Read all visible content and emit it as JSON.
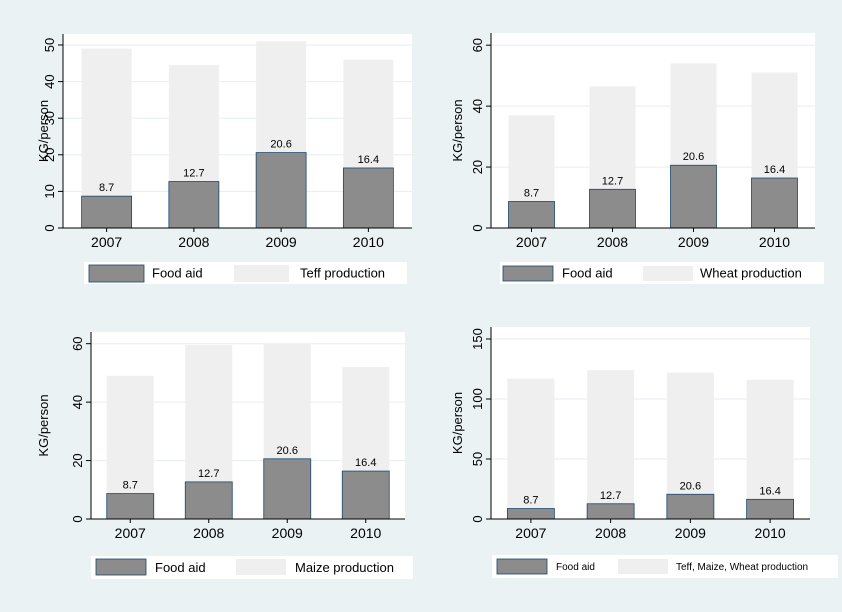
{
  "colors": {
    "background": "#eaf2f3",
    "plot_area": "#ffffff",
    "food_aid": "#8c8c8c",
    "food_aid_stroke": "#1a476f",
    "production": "#efefef",
    "grid": "#e7eef0"
  },
  "chart_data": [
    {
      "type": "bar",
      "stacked": false,
      "overlaid": true,
      "categories": [
        "2007",
        "2008",
        "2009",
        "2010"
      ],
      "ylabel": "KG/person",
      "ylim": [
        0,
        53
      ],
      "yticks": [
        "0",
        "10",
        "20",
        "30",
        "40",
        "50"
      ],
      "ytick_values": [
        0,
        10,
        20,
        30,
        40,
        50
      ],
      "grid": true,
      "legend_position": "bottom",
      "series": [
        {
          "name": "Food aid",
          "values": [
            8.7,
            12.7,
            20.6,
            16.4
          ],
          "labels": [
            "8.7",
            "12.7",
            "20.6",
            "16.4"
          ]
        },
        {
          "name": "Teff production",
          "values": [
            49,
            44.5,
            51,
            46
          ]
        }
      ]
    },
    {
      "type": "bar",
      "stacked": false,
      "overlaid": true,
      "categories": [
        "2007",
        "2008",
        "2009",
        "2010"
      ],
      "ylabel": "KG/person",
      "ylim": [
        0,
        64
      ],
      "yticks": [
        "0",
        "20",
        "40",
        "60"
      ],
      "ytick_values": [
        0,
        20,
        40,
        60
      ],
      "grid": true,
      "legend_position": "bottom",
      "series": [
        {
          "name": "Food aid",
          "values": [
            8.7,
            12.7,
            20.6,
            16.4
          ],
          "labels": [
            "8.7",
            "12.7",
            "20.6",
            "16.4"
          ]
        },
        {
          "name": "Wheat production",
          "values": [
            37,
            46.5,
            54,
            51
          ]
        }
      ]
    },
    {
      "type": "bar",
      "stacked": false,
      "overlaid": true,
      "categories": [
        "2007",
        "2008",
        "2009",
        "2010"
      ],
      "ylabel": "KG/person",
      "ylim": [
        0,
        64
      ],
      "yticks": [
        "0",
        "20",
        "40",
        "60"
      ],
      "ytick_values": [
        0,
        20,
        40,
        60
      ],
      "grid": true,
      "legend_position": "bottom",
      "series": [
        {
          "name": "Food aid",
          "values": [
            8.7,
            12.7,
            20.6,
            16.4
          ],
          "labels": [
            "8.7",
            "12.7",
            "20.6",
            "16.4"
          ]
        },
        {
          "name": "Maize production",
          "values": [
            49,
            59.5,
            60,
            52
          ]
        }
      ]
    },
    {
      "type": "bar",
      "stacked": false,
      "overlaid": true,
      "categories": [
        "2007",
        "2008",
        "2009",
        "2010"
      ],
      "ylabel": "KG/person",
      "ylim": [
        0,
        160
      ],
      "yticks": [
        "0",
        "50",
        "100",
        "150"
      ],
      "ytick_values": [
        0,
        50,
        100,
        150
      ],
      "grid": true,
      "legend_position": "bottom",
      "series": [
        {
          "name": "Food aid",
          "values": [
            8.7,
            12.7,
            20.6,
            16.4
          ],
          "labels": [
            "8.7",
            "12.7",
            "20.6",
            "16.4"
          ]
        },
        {
          "name": "Teff, Maize, Wheat production",
          "values": [
            117,
            124,
            122,
            116
          ]
        }
      ]
    }
  ]
}
